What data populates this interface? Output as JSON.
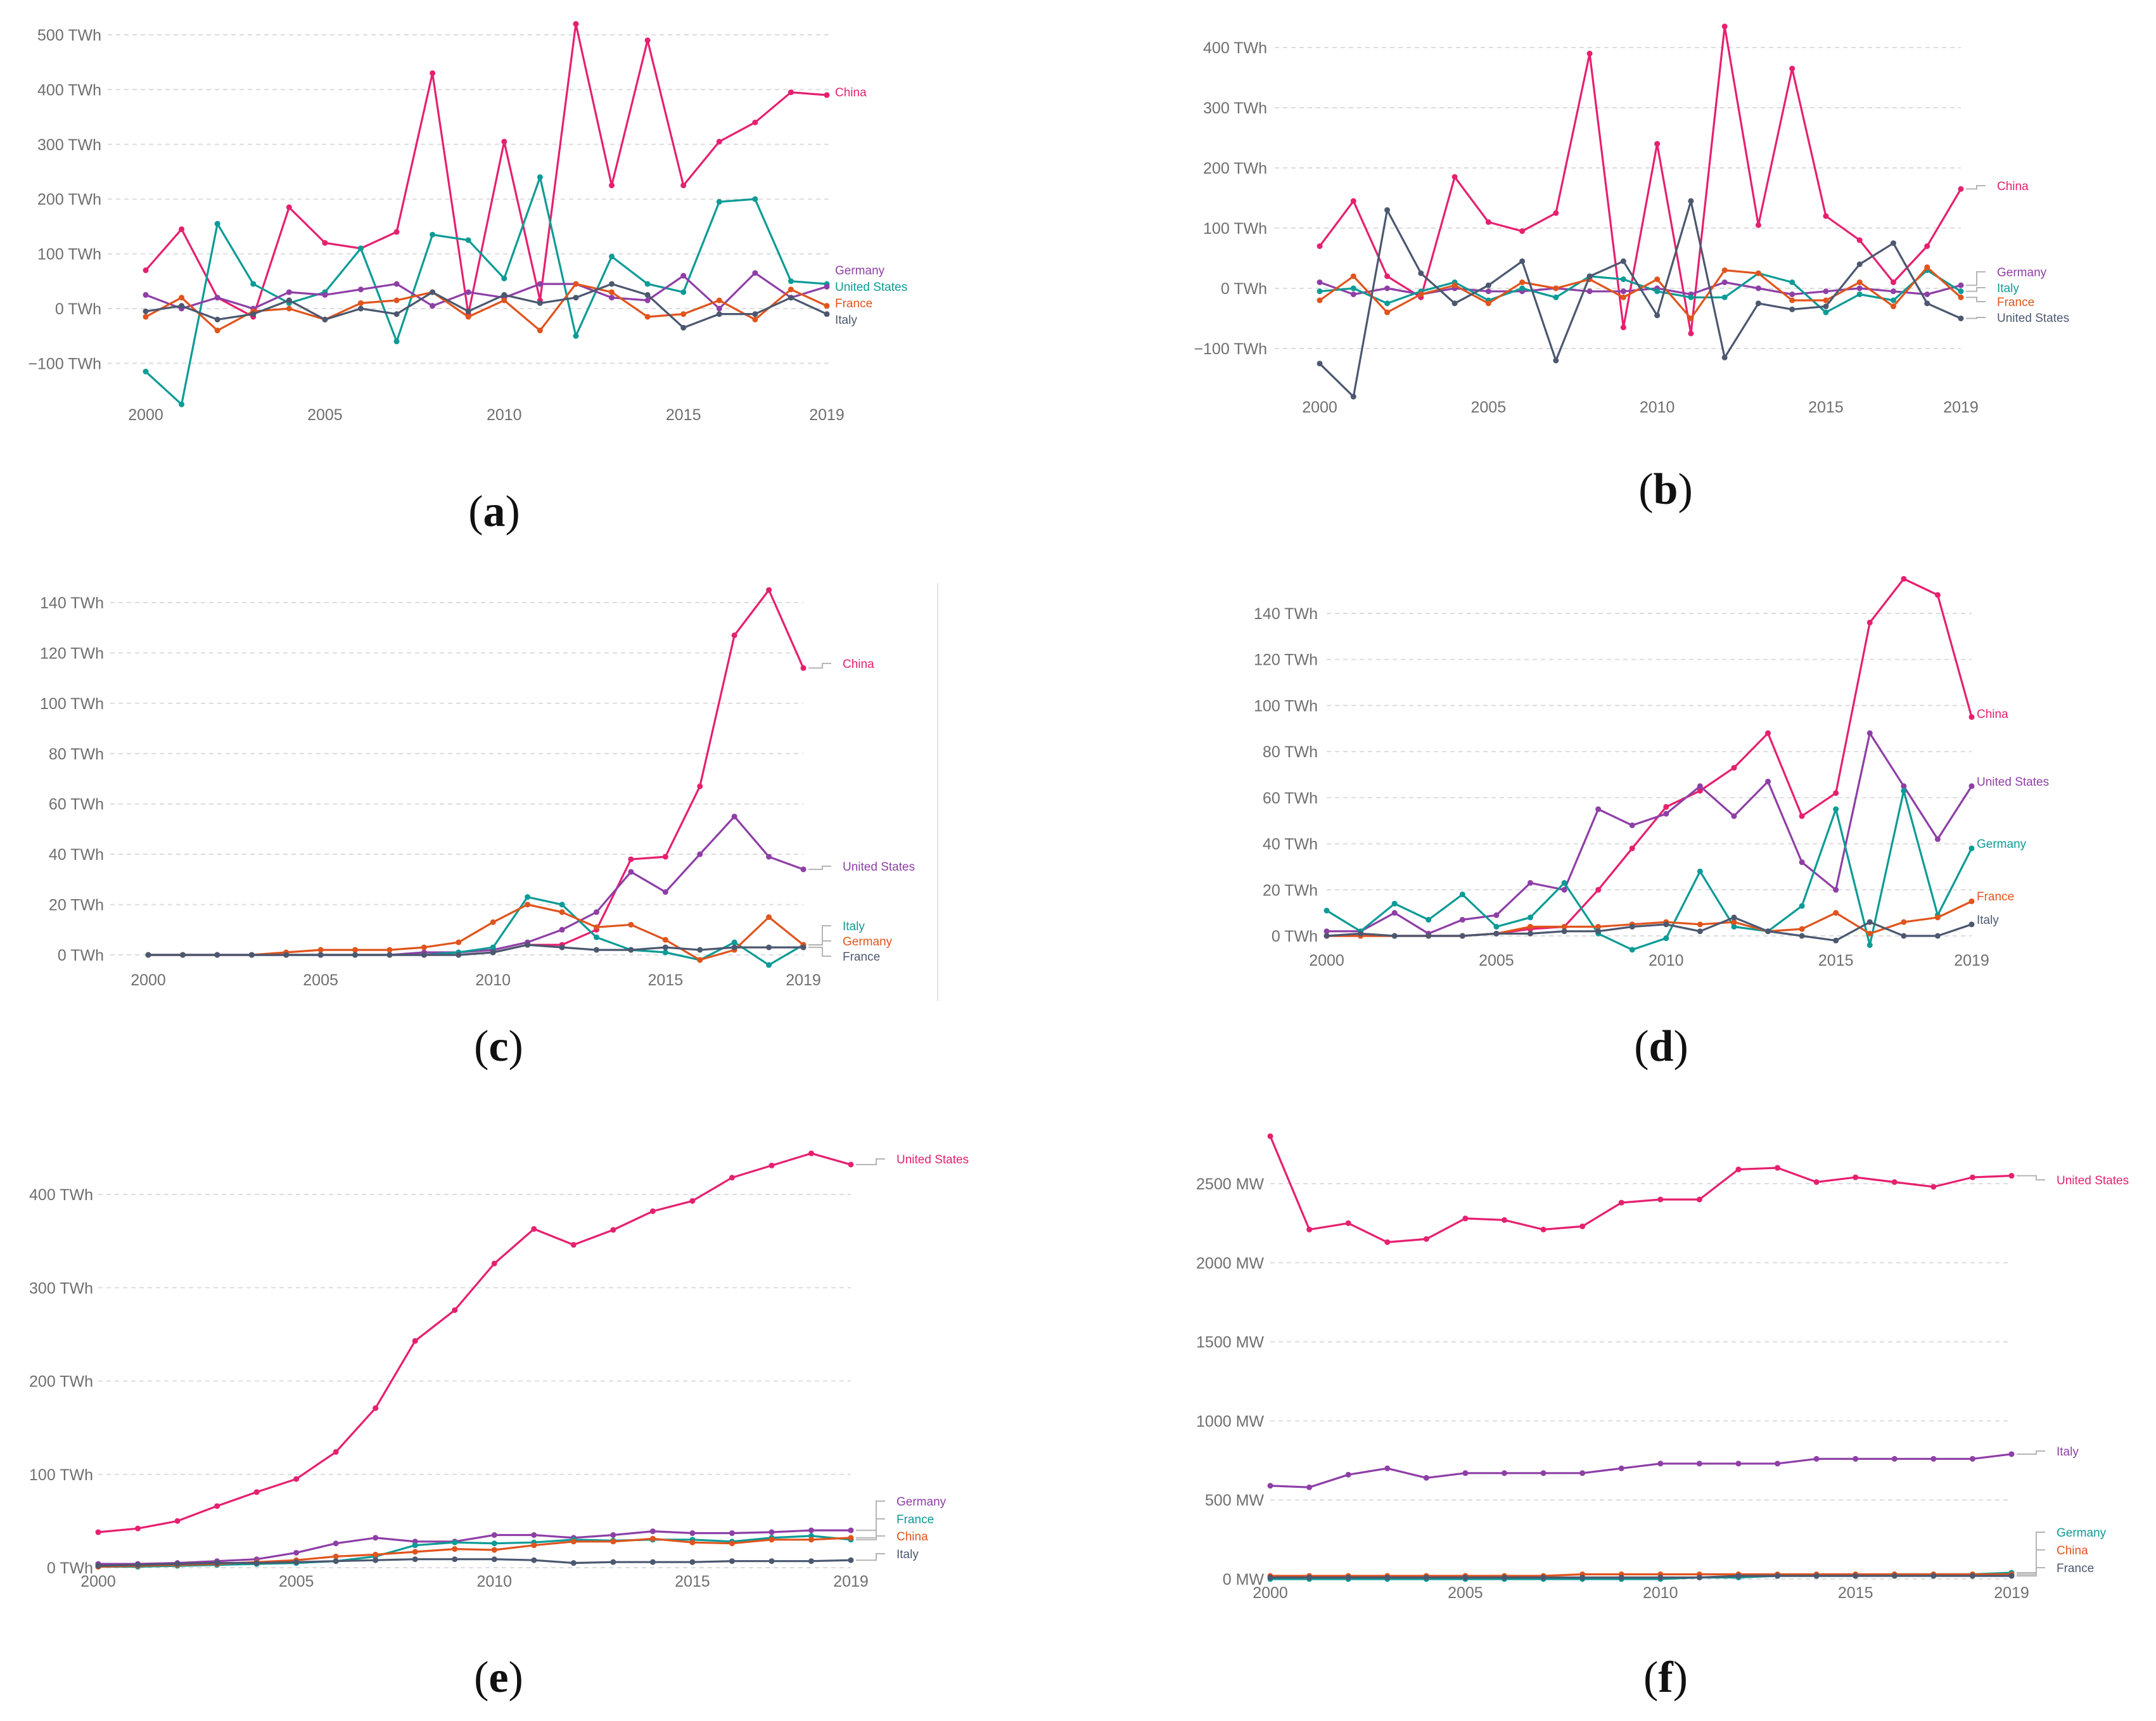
{
  "colors": {
    "China": "#e6206f",
    "United States": "#0c9b96",
    "Germany": "#8e3fa6",
    "France": "#e0541d",
    "Italy": "#4c5870"
  },
  "chart_data": [
    {
      "type": "line",
      "panel": "a",
      "unit": "TWh",
      "x": [
        2000,
        2001,
        2002,
        2003,
        2004,
        2005,
        2006,
        2007,
        2008,
        2009,
        2010,
        2011,
        2012,
        2013,
        2014,
        2015,
        2016,
        2017,
        2018,
        2019
      ],
      "xticks": [
        "2000",
        "2005",
        "2010",
        "2015",
        "2019"
      ],
      "yticks": [
        "−100 TWh",
        "0 TWh",
        "100 TWh",
        "200 TWh",
        "300 TWh",
        "400 TWh",
        "500 TWh"
      ],
      "ylim": [
        -175,
        525
      ],
      "series": [
        {
          "name": "China",
          "color": "#e6206f",
          "label": "China",
          "values": [
            70,
            145,
            20,
            -15,
            185,
            120,
            110,
            140,
            430,
            -10,
            305,
            15,
            520,
            225,
            490,
            225,
            305,
            340,
            395,
            390
          ]
        },
        {
          "name": "United States",
          "color": "#0c9b96",
          "label": "United States",
          "values": [
            -115,
            -175,
            155,
            45,
            10,
            30,
            110,
            -60,
            135,
            125,
            55,
            240,
            -50,
            95,
            45,
            30,
            195,
            200,
            50,
            45
          ]
        },
        {
          "name": "Germany",
          "color": "#8e3fa6",
          "label": "Germany",
          "values": [
            25,
            0,
            20,
            0,
            30,
            25,
            35,
            45,
            5,
            30,
            20,
            45,
            45,
            20,
            15,
            60,
            0,
            65,
            20,
            40
          ]
        },
        {
          "name": "France",
          "color": "#e0541d",
          "label": "France",
          "values": [
            -15,
            20,
            -40,
            -5,
            0,
            -20,
            10,
            15,
            30,
            -15,
            15,
            -40,
            45,
            30,
            -15,
            -10,
            15,
            -20,
            35,
            5
          ]
        },
        {
          "name": "Italy",
          "color": "#4c5870",
          "label": "Italy",
          "values": [
            -5,
            5,
            -20,
            -10,
            15,
            -20,
            0,
            -10,
            30,
            -5,
            25,
            10,
            20,
            45,
            25,
            -35,
            -10,
            -10,
            20,
            -10
          ]
        }
      ],
      "labels_order": [
        "China",
        "Germany",
        "United States",
        "France",
        "Italy"
      ]
    },
    {
      "type": "line",
      "panel": "b",
      "unit": "TWh",
      "x": [
        2000,
        2001,
        2002,
        2003,
        2004,
        2005,
        2006,
        2007,
        2008,
        2009,
        2010,
        2011,
        2012,
        2013,
        2014,
        2015,
        2016,
        2017,
        2018,
        2019
      ],
      "xticks": [
        "2000",
        "2005",
        "2010",
        "2015",
        "2019"
      ],
      "yticks": [
        "−100 TWh",
        "0 TWh",
        "100 TWh",
        "200 TWh",
        "300 TWh",
        "400 TWh"
      ],
      "ylim": [
        -180,
        440
      ],
      "series": [
        {
          "name": "China",
          "color": "#e6206f",
          "label": "China",
          "values": [
            70,
            145,
            20,
            -15,
            185,
            110,
            95,
            125,
            390,
            -65,
            240,
            -75,
            435,
            105,
            365,
            120,
            80,
            10,
            70,
            165
          ]
        },
        {
          "name": "Germany",
          "color": "#8e3fa6",
          "label": "Germany",
          "values": [
            10,
            -10,
            0,
            -10,
            0,
            -5,
            -5,
            0,
            -5,
            -5,
            0,
            -10,
            10,
            0,
            -10,
            -5,
            0,
            -5,
            -10,
            5
          ]
        },
        {
          "name": "Italy",
          "color": "#0c9b96",
          "label": "Italy",
          "values": [
            -5,
            0,
            -25,
            -5,
            10,
            -20,
            0,
            -15,
            20,
            15,
            -5,
            -15,
            -15,
            25,
            10,
            -40,
            -10,
            -20,
            30,
            -5
          ]
        },
        {
          "name": "France",
          "color": "#e0541d",
          "label": "France",
          "values": [
            -20,
            20,
            -40,
            -10,
            5,
            -25,
            10,
            0,
            15,
            -15,
            15,
            -50,
            30,
            25,
            -20,
            -20,
            10,
            -30,
            35,
            -15
          ]
        },
        {
          "name": "United States",
          "color": "#4c5870",
          "label": "United States",
          "values": [
            -125,
            -180,
            130,
            25,
            -25,
            5,
            45,
            -120,
            20,
            45,
            -45,
            145,
            -115,
            -25,
            -35,
            -30,
            40,
            75,
            -25,
            -50
          ]
        }
      ],
      "labels_order": [
        "China",
        "Germany",
        "Italy",
        "France",
        "United States"
      ]
    },
    {
      "type": "line",
      "panel": "c",
      "unit": "TWh",
      "x": [
        2000,
        2001,
        2002,
        2003,
        2004,
        2005,
        2006,
        2007,
        2008,
        2009,
        2010,
        2011,
        2012,
        2013,
        2014,
        2015,
        2016,
        2017,
        2018,
        2019
      ],
      "xticks": [
        "2000",
        "2005",
        "2010",
        "2015",
        "2019"
      ],
      "yticks": [
        "0 TWh",
        "20 TWh",
        "40 TWh",
        "60 TWh",
        "80 TWh",
        "100 TWh",
        "120 TWh",
        "140 TWh"
      ],
      "ylim": [
        0,
        145
      ],
      "series": [
        {
          "name": "China",
          "color": "#e6206f",
          "label": "China",
          "values": [
            0,
            0,
            0,
            0,
            0,
            0,
            0,
            0,
            0,
            0,
            1,
            4,
            4,
            10,
            38,
            39,
            67,
            127,
            145,
            114
          ]
        },
        {
          "name": "United States",
          "color": "#8e3fa6",
          "label": "United States",
          "values": [
            0,
            0,
            0,
            0,
            0,
            0,
            0,
            0,
            1,
            1,
            2,
            5,
            10,
            17,
            33,
            25,
            40,
            55,
            39,
            34
          ]
        },
        {
          "name": "Italy",
          "color": "#0c9b96",
          "label": "Italy",
          "values": [
            0,
            0,
            0,
            0,
            0,
            0,
            0,
            0,
            0,
            1,
            3,
            23,
            20,
            7,
            2,
            1,
            -2,
            5,
            -4,
            4
          ]
        },
        {
          "name": "Germany",
          "color": "#e0541d",
          "label": "Germany",
          "values": [
            0,
            0,
            0,
            0,
            1,
            2,
            2,
            2,
            3,
            5,
            13,
            20,
            17,
            11,
            12,
            6,
            -2,
            2,
            15,
            4
          ]
        },
        {
          "name": "France",
          "color": "#4c5870",
          "label": "France",
          "values": [
            0,
            0,
            0,
            0,
            0,
            0,
            0,
            0,
            0,
            0,
            1,
            4,
            3,
            2,
            2,
            3,
            2,
            3,
            3,
            3
          ]
        }
      ],
      "labels_order": [
        "China",
        "United States",
        "Italy",
        "Germany",
        "France"
      ]
    },
    {
      "type": "line",
      "panel": "d",
      "unit": "TWh",
      "x": [
        2000,
        2001,
        2002,
        2003,
        2004,
        2005,
        2006,
        2007,
        2008,
        2009,
        2010,
        2011,
        2012,
        2013,
        2014,
        2015,
        2016,
        2017,
        2018,
        2019
      ],
      "xticks": [
        "2000",
        "2005",
        "2010",
        "2015",
        "2019"
      ],
      "yticks": [
        "0 TWh",
        "20 TWh",
        "40 TWh",
        "60 TWh",
        "80 TWh",
        "100 TWh",
        "120 TWh",
        "140 TWh"
      ],
      "ylim": [
        0,
        155
      ],
      "series": [
        {
          "name": "China",
          "color": "#e6206f",
          "label": "China",
          "values": [
            0,
            0,
            0,
            0,
            0,
            1,
            3,
            4,
            20,
            38,
            56,
            63,
            73,
            88,
            52,
            62,
            136,
            155,
            148,
            95
          ]
        },
        {
          "name": "United States",
          "color": "#8e3fa6",
          "label": "United States",
          "values": [
            2,
            2,
            10,
            1,
            7,
            9,
            23,
            20,
            55,
            48,
            53,
            65,
            52,
            67,
            32,
            20,
            88,
            65,
            42,
            65
          ]
        },
        {
          "name": "Germany",
          "color": "#0c9b96",
          "label": "Germany",
          "values": [
            11,
            2,
            14,
            7,
            18,
            4,
            8,
            23,
            1,
            -6,
            -1,
            28,
            4,
            2,
            13,
            55,
            -4,
            63,
            9,
            38
          ]
        },
        {
          "name": "France",
          "color": "#e0541d",
          "label": "France",
          "values": [
            0,
            0,
            0,
            0,
            0,
            1,
            4,
            4,
            4,
            5,
            6,
            5,
            6,
            2,
            3,
            10,
            1,
            6,
            8,
            15
          ]
        },
        {
          "name": "Italy",
          "color": "#4c5870",
          "label": "Italy",
          "values": [
            0,
            1,
            0,
            0,
            0,
            1,
            1,
            2,
            2,
            4,
            5,
            2,
            8,
            2,
            0,
            -2,
            6,
            0,
            0,
            5
          ]
        }
      ],
      "labels_order": [
        "China",
        "United States",
        "Germany",
        "France",
        "Italy"
      ]
    },
    {
      "type": "line",
      "panel": "e",
      "unit": "TWh",
      "x": [
        2000,
        2001,
        2002,
        2003,
        2004,
        2005,
        2006,
        2007,
        2008,
        2009,
        2010,
        2011,
        2012,
        2013,
        2014,
        2015,
        2016,
        2017,
        2018,
        2019
      ],
      "xticks": [
        "2000",
        "2005",
        "2010",
        "2015",
        "2019"
      ],
      "yticks": [
        "0 TWh",
        "100 TWh",
        "200 TWh",
        "300 TWh",
        "400 TWh"
      ],
      "ylim": [
        0,
        450
      ],
      "series": [
        {
          "name": "United States",
          "color": "#e6206f",
          "label": "United States",
          "values": [
            38,
            42,
            50,
            66,
            81,
            95,
            124,
            171,
            243,
            276,
            326,
            363,
            346,
            362,
            382,
            393,
            418,
            431,
            444,
            432
          ]
        },
        {
          "name": "Germany",
          "color": "#8e3fa6",
          "label": "Germany",
          "values": [
            4,
            4,
            5,
            7,
            9,
            16,
            26,
            32,
            28,
            28,
            35,
            35,
            32,
            35,
            39,
            37,
            37,
            38,
            40,
            40
          ]
        },
        {
          "name": "France",
          "color": "#0c9b96",
          "label": "France",
          "values": [
            1,
            1,
            2,
            3,
            4,
            5,
            7,
            12,
            24,
            27,
            26,
            27,
            30,
            29,
            30,
            30,
            28,
            32,
            34,
            30
          ]
        },
        {
          "name": "China",
          "color": "#e0541d",
          "label": "China",
          "values": [
            1,
            2,
            3,
            4,
            6,
            8,
            12,
            14,
            17,
            20,
            19,
            24,
            28,
            28,
            31,
            27,
            26,
            30,
            30,
            32
          ]
        },
        {
          "name": "Italy",
          "color": "#4c5870",
          "label": "Italy",
          "values": [
            2,
            3,
            4,
            5,
            5,
            6,
            7,
            8,
            9,
            9,
            9,
            8,
            5,
            6,
            6,
            6,
            7,
            7,
            7,
            8
          ]
        }
      ],
      "labels_order": [
        "United States",
        "Germany",
        "France",
        "China",
        "Italy"
      ]
    },
    {
      "type": "line",
      "panel": "f",
      "unit": "MW",
      "x": [
        2000,
        2001,
        2002,
        2003,
        2004,
        2005,
        2006,
        2007,
        2008,
        2009,
        2010,
        2011,
        2012,
        2013,
        2014,
        2015,
        2016,
        2017,
        2018,
        2019
      ],
      "xticks": [
        "2000",
        "2005",
        "2010",
        "2015",
        "2019"
      ],
      "yticks": [
        "0 MW",
        "500 MW",
        "1000 MW",
        "1500 MW",
        "2000 MW",
        "2500 MW"
      ],
      "ylim": [
        0,
        2800
      ],
      "series": [
        {
          "name": "United States",
          "color": "#e6206f",
          "label": "United States",
          "values": [
            2800,
            2210,
            2250,
            2130,
            2150,
            2280,
            2270,
            2210,
            2230,
            2380,
            2400,
            2400,
            2590,
            2600,
            2510,
            2540,
            2510,
            2480,
            2540,
            2550
          ]
        },
        {
          "name": "Italy",
          "color": "#8e3fa6",
          "label": "Italy",
          "values": [
            590,
            580,
            660,
            700,
            640,
            670,
            670,
            670,
            670,
            700,
            730,
            730,
            730,
            730,
            760,
            760,
            760,
            760,
            760,
            790
          ]
        },
        {
          "name": "Germany",
          "color": "#0c9b96",
          "label": "Germany",
          "values": [
            0,
            0,
            0,
            0,
            0,
            0,
            0,
            0,
            0,
            0,
            0,
            10,
            10,
            20,
            20,
            20,
            30,
            30,
            30,
            40
          ]
        },
        {
          "name": "China",
          "color": "#e0541d",
          "label": "China",
          "values": [
            20,
            20,
            20,
            20,
            20,
            20,
            20,
            20,
            30,
            30,
            30,
            30,
            30,
            30,
            30,
            30,
            30,
            30,
            30,
            30
          ]
        },
        {
          "name": "France",
          "color": "#4c5870",
          "label": "France",
          "values": [
            10,
            10,
            10,
            10,
            10,
            10,
            10,
            10,
            10,
            10,
            10,
            10,
            20,
            20,
            20,
            20,
            20,
            20,
            20,
            20
          ]
        }
      ],
      "labels_order": [
        "Germany",
        "China",
        "France"
      ]
    }
  ],
  "captions": [
    "a",
    "b",
    "c",
    "d",
    "e",
    "f"
  ]
}
